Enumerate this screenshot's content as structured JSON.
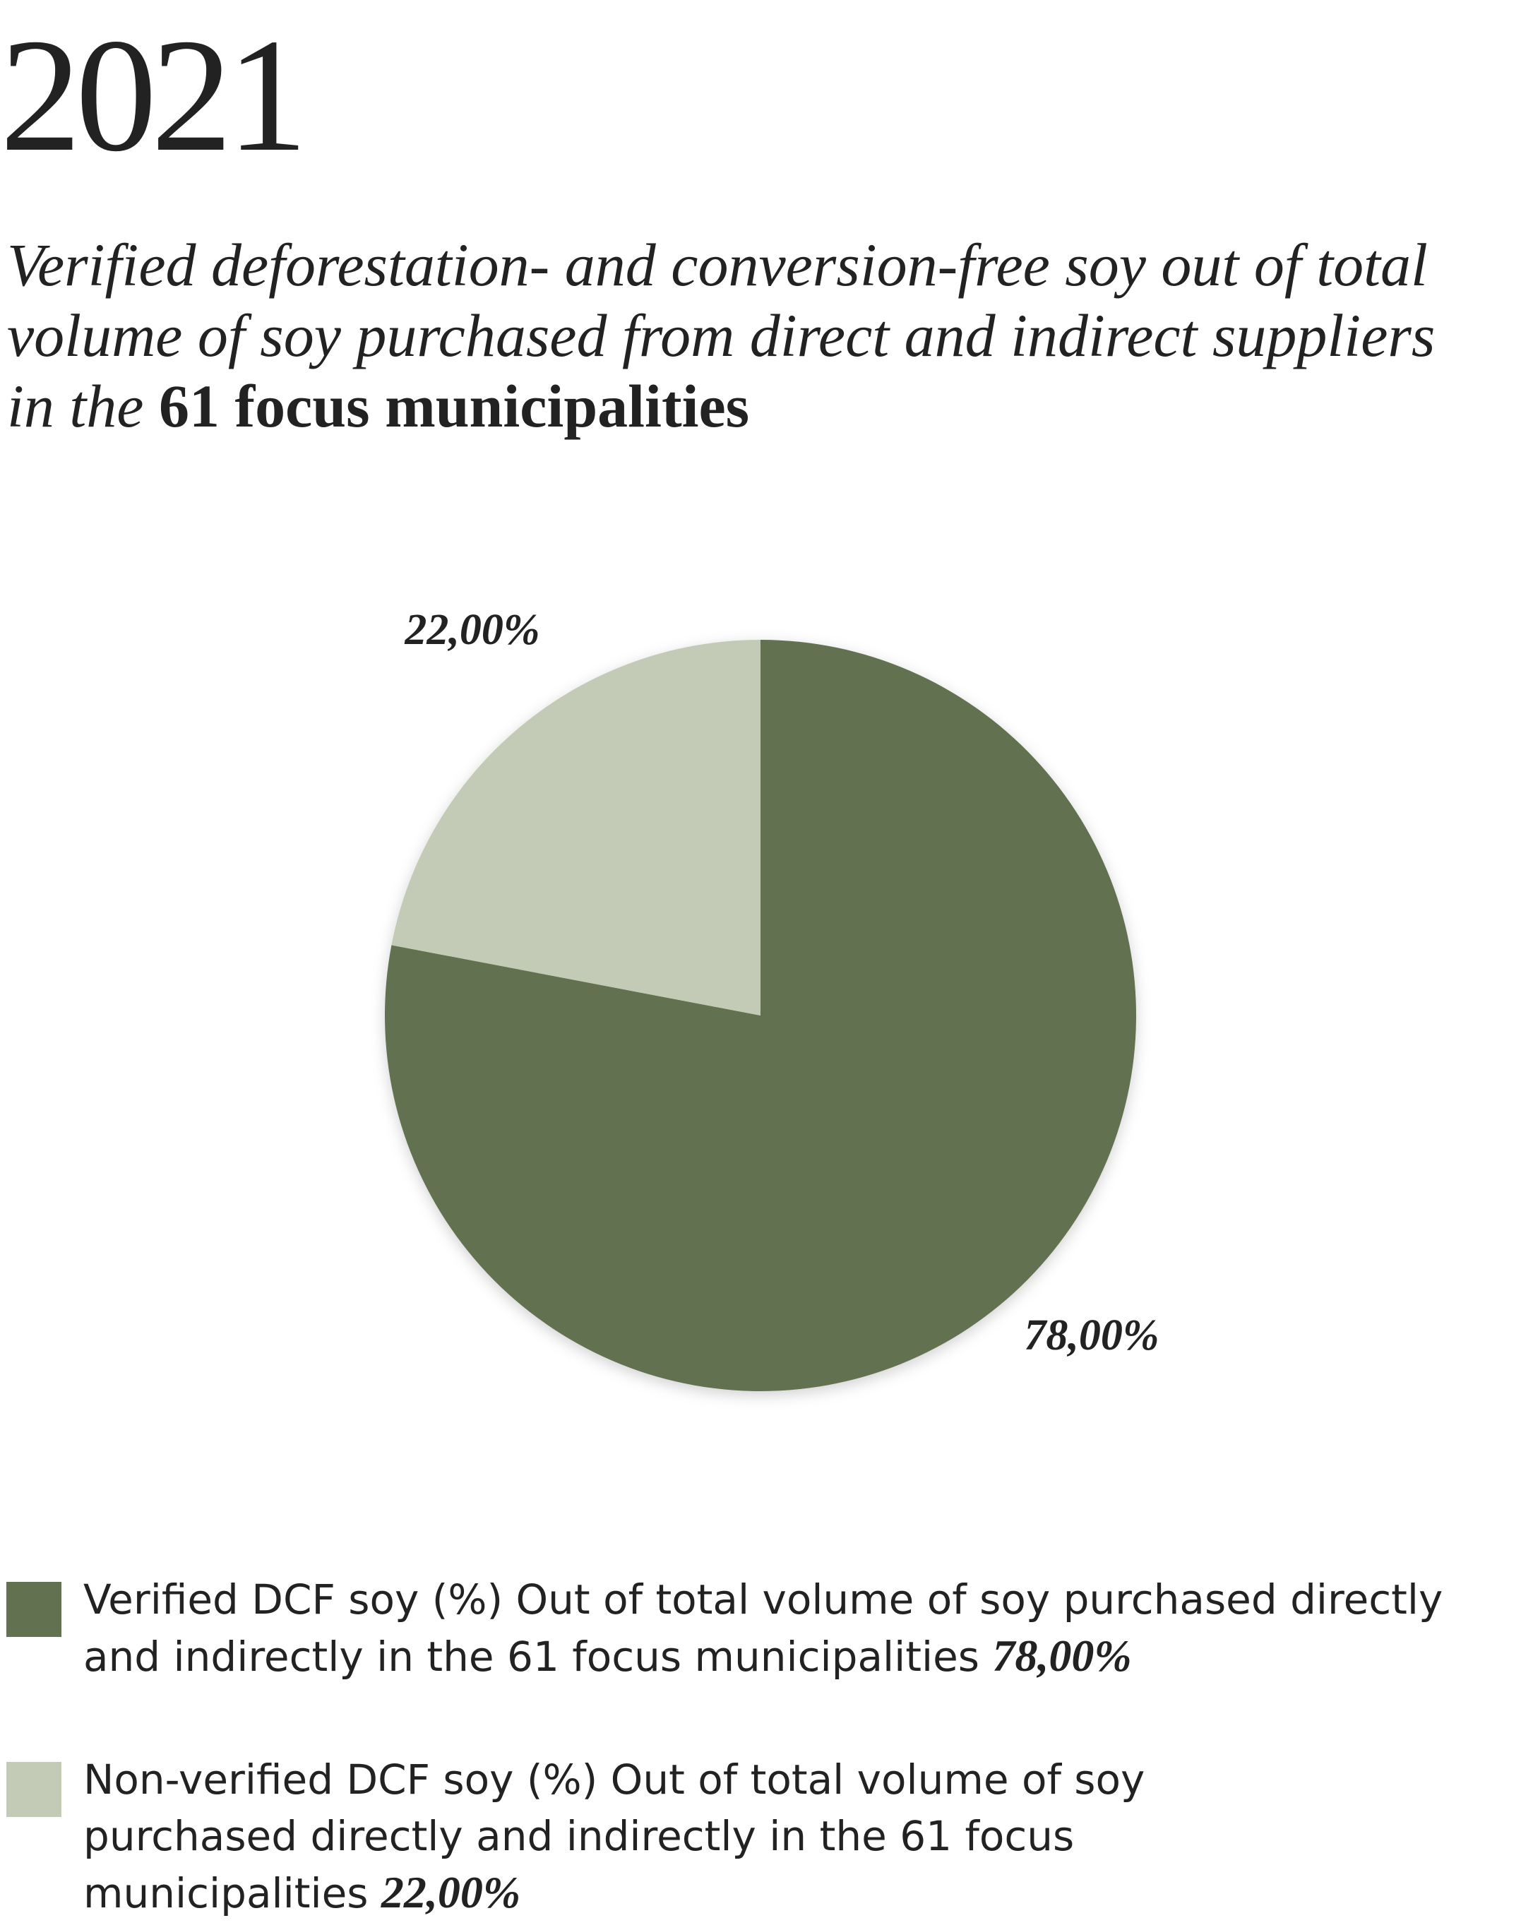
{
  "chart_data": {
    "type": "pie",
    "title": "2021",
    "subtitle": "Verified deforestation- and conversion-free soy out of total volume of soy purchased from direct and indirect suppliers in the ",
    "subtitle_bold": "61 focus municipalities",
    "categories": [
      "Verified DCF soy (%) Out of total volume of soy purchased directly and indirectly in the 61 focus municipalities",
      "Non-verified DCF soy (%) Out of total volume of soy purchased directly and indirectly in the 61 focus municipalities"
    ],
    "values": [
      78,
      22
    ],
    "value_labels": [
      "78,00%",
      "22,00%"
    ],
    "colors": [
      "#627150",
      "#c3cbb6"
    ]
  }
}
